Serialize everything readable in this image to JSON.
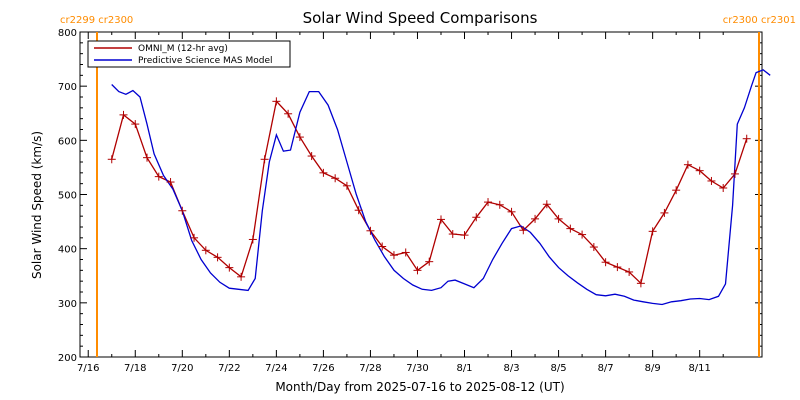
{
  "colors": {
    "omni": "#b00000",
    "model": "#0000d0",
    "cr_marker": "#ff8c00",
    "axis": "#000000"
  },
  "cr_labels": {
    "left": "cr2299 cr2300",
    "right": "cr2300 cr2301"
  },
  "chart_data": {
    "type": "line",
    "title": "Solar Wind Speed Comparisons",
    "xlabel": "Month/Day from 2025-07-16 to 2025-08-12 (UT)",
    "ylabel": "Solar Wind Speed (km/s)",
    "ylim": [
      200,
      800
    ],
    "xlim_days": [
      0,
      27.0
    ],
    "y_ticks": [
      200,
      300,
      400,
      500,
      600,
      700,
      800
    ],
    "x_ticks": [
      {
        "day": 0,
        "label": "7/16"
      },
      {
        "day": 2,
        "label": "7/18"
      },
      {
        "day": 4,
        "label": "7/20"
      },
      {
        "day": 6,
        "label": "7/22"
      },
      {
        "day": 8,
        "label": "7/24"
      },
      {
        "day": 10,
        "label": "7/26"
      },
      {
        "day": 12,
        "label": "7/28"
      },
      {
        "day": 14,
        "label": "7/30"
      },
      {
        "day": 16,
        "label": "8/1"
      },
      {
        "day": 18,
        "label": "8/3"
      },
      {
        "day": 20,
        "label": "8/5"
      },
      {
        "day": 22,
        "label": "8/7"
      },
      {
        "day": 24,
        "label": "8/9"
      },
      {
        "day": 26,
        "label": "8/11"
      }
    ],
    "cr_boundaries_days": [
      1.0,
      26.9
    ],
    "legend": "top-left",
    "series": [
      {
        "name": "OMNI_M (12-hr avg)",
        "markers": "plus",
        "points": [
          [
            1.0,
            565
          ],
          [
            1.5,
            647
          ],
          [
            2.0,
            630
          ],
          [
            2.5,
            568
          ],
          [
            3.0,
            533
          ],
          [
            3.5,
            523
          ],
          [
            4.0,
            470
          ],
          [
            4.5,
            420
          ],
          [
            5.0,
            397
          ],
          [
            5.5,
            384
          ],
          [
            6.0,
            365
          ],
          [
            6.5,
            348
          ],
          [
            7.0,
            417
          ],
          [
            7.5,
            565
          ],
          [
            8.0,
            672
          ],
          [
            8.5,
            649
          ],
          [
            9.0,
            606
          ],
          [
            9.5,
            571
          ],
          [
            10.0,
            540
          ],
          [
            10.5,
            530
          ],
          [
            11.0,
            516
          ],
          [
            11.5,
            471
          ],
          [
            12.0,
            433
          ],
          [
            12.5,
            404
          ],
          [
            13.0,
            388
          ],
          [
            13.5,
            393
          ],
          [
            14.0,
            360
          ],
          [
            14.5,
            376
          ],
          [
            15.0,
            454
          ],
          [
            15.5,
            427
          ],
          [
            16.0,
            425
          ],
          [
            16.5,
            458
          ],
          [
            17.0,
            486
          ],
          [
            17.5,
            481
          ],
          [
            18.0,
            468
          ],
          [
            18.5,
            434
          ],
          [
            19.0,
            455
          ],
          [
            19.5,
            482
          ],
          [
            20.0,
            455
          ],
          [
            20.5,
            437
          ],
          [
            21.0,
            426
          ],
          [
            21.5,
            403
          ],
          [
            22.0,
            375
          ],
          [
            22.5,
            366
          ],
          [
            23.0,
            357
          ],
          [
            23.5,
            336
          ],
          [
            24.0,
            432
          ],
          [
            24.5,
            466
          ],
          [
            25.0,
            508
          ],
          [
            25.5,
            555
          ],
          [
            26.0,
            544
          ],
          [
            26.5,
            525
          ],
          [
            27.0,
            512
          ],
          [
            27.5,
            538
          ],
          [
            28.0,
            603
          ]
        ]
      },
      {
        "name": "Predictive Science MAS Model",
        "markers": "none",
        "points": [
          [
            1.0,
            703
          ],
          [
            1.3,
            690
          ],
          [
            1.6,
            685
          ],
          [
            1.9,
            692
          ],
          [
            2.2,
            680
          ],
          [
            2.5,
            630
          ],
          [
            2.8,
            575
          ],
          [
            3.2,
            535
          ],
          [
            3.6,
            510
          ],
          [
            4.0,
            470
          ],
          [
            4.4,
            415
          ],
          [
            4.8,
            380
          ],
          [
            5.2,
            355
          ],
          [
            5.6,
            338
          ],
          [
            6.0,
            327
          ],
          [
            6.4,
            325
          ],
          [
            6.8,
            323
          ],
          [
            7.1,
            345
          ],
          [
            7.4,
            470
          ],
          [
            7.7,
            560
          ],
          [
            8.0,
            610
          ],
          [
            8.3,
            580
          ],
          [
            8.6,
            582
          ],
          [
            9.0,
            652
          ],
          [
            9.4,
            690
          ],
          [
            9.8,
            690
          ],
          [
            10.2,
            665
          ],
          [
            10.6,
            620
          ],
          [
            11.0,
            560
          ],
          [
            11.4,
            500
          ],
          [
            11.8,
            450
          ],
          [
            12.2,
            415
          ],
          [
            12.6,
            385
          ],
          [
            13.0,
            360
          ],
          [
            13.4,
            345
          ],
          [
            13.8,
            333
          ],
          [
            14.2,
            325
          ],
          [
            14.6,
            323
          ],
          [
            15.0,
            328
          ],
          [
            15.3,
            340
          ],
          [
            15.6,
            342
          ],
          [
            16.0,
            335
          ],
          [
            16.4,
            328
          ],
          [
            16.8,
            345
          ],
          [
            17.2,
            380
          ],
          [
            17.6,
            410
          ],
          [
            18.0,
            437
          ],
          [
            18.4,
            442
          ],
          [
            18.8,
            430
          ],
          [
            19.2,
            410
          ],
          [
            19.6,
            385
          ],
          [
            20.0,
            365
          ],
          [
            20.4,
            350
          ],
          [
            20.8,
            337
          ],
          [
            21.2,
            325
          ],
          [
            21.6,
            315
          ],
          [
            22.0,
            313
          ],
          [
            22.4,
            316
          ],
          [
            22.8,
            312
          ],
          [
            23.2,
            305
          ],
          [
            23.6,
            302
          ],
          [
            24.0,
            299
          ],
          [
            24.4,
            297
          ],
          [
            24.8,
            302
          ],
          [
            25.2,
            304
          ],
          [
            25.6,
            307
          ],
          [
            26.0,
            308
          ],
          [
            26.4,
            306
          ],
          [
            26.8,
            312
          ],
          [
            27.1,
            335
          ],
          [
            27.4,
            480
          ],
          [
            27.6,
            630
          ],
          [
            27.9,
            660
          ],
          [
            28.2,
            700
          ],
          [
            28.4,
            725
          ],
          [
            28.7,
            730
          ],
          [
            29.0,
            720
          ]
        ]
      }
    ]
  }
}
